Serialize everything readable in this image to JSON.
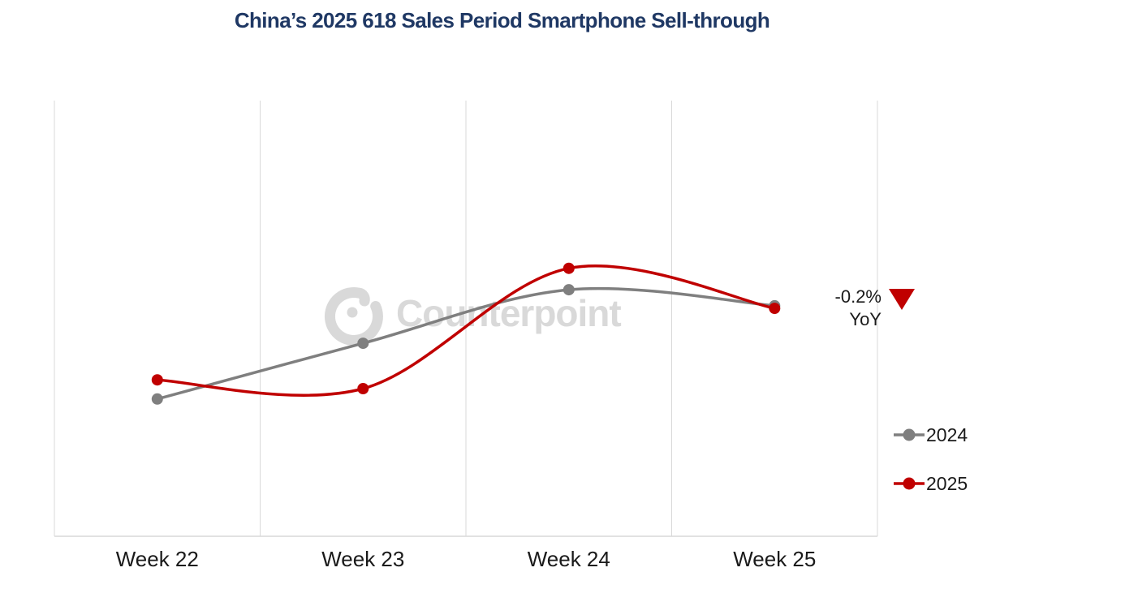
{
  "header": {
    "title": "China’s 2025 618 Sales Period Smartphone Sell-through",
    "title_color": "#1F3864"
  },
  "watermark": {
    "text": "Counterpoint",
    "color": "#D9D9D9"
  },
  "annotation": {
    "value": "-0.2%",
    "label": "YoY",
    "icon": "down-triangle",
    "icon_color": "#C00000"
  },
  "legend": {
    "items": [
      {
        "label": "2024",
        "color": "#7F7F7F"
      },
      {
        "label": "2025",
        "color": "#C00000"
      }
    ]
  },
  "chart_data": {
    "type": "line",
    "line_style": "smooth",
    "title": "China’s 2025 618 Sales Period Smartphone Sell-through",
    "categories": [
      "Week 22",
      "Week 23",
      "Week 24",
      "Week 25"
    ],
    "series": [
      {
        "name": "2024",
        "color": "#7F7F7F",
        "values": [
          31.5,
          44.3,
          56.6,
          52.9
        ]
      },
      {
        "name": "2025",
        "color": "#C00000",
        "values": [
          35.9,
          33.9,
          61.5,
          52.3
        ]
      }
    ],
    "xlabel": "",
    "ylabel": "",
    "ylim": [
      0,
      100
    ],
    "value_scale": "relative sell-through index (y-axis unlabeled in source)",
    "y_axis_visible": false,
    "grid": "vertical-only",
    "gridline_color": "#D9D9D9",
    "legend_position": "right",
    "annotations": [
      {
        "text": "-0.2% YoY",
        "marker": "filled-down-triangle",
        "marker_color": "#C00000",
        "position": "right of Week 25 points"
      }
    ]
  }
}
